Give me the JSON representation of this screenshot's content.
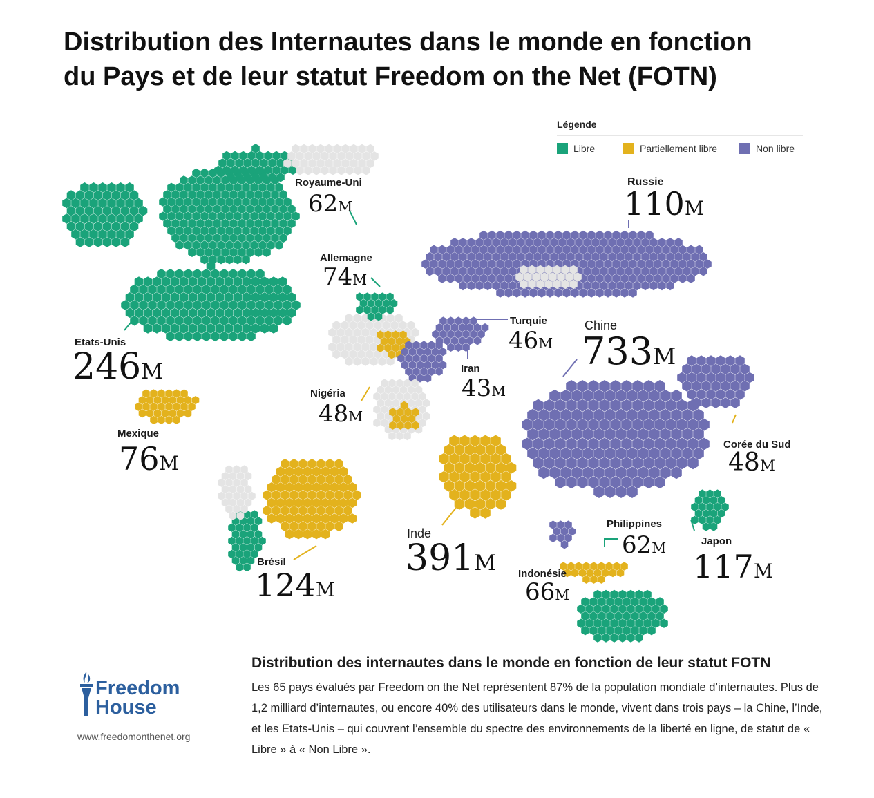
{
  "title_line1": "Distribution des Internautes dans le monde en fonction",
  "title_line2": "du Pays et de leur statut Freedom on the Net (FOTN)",
  "legend": {
    "title": "Légende",
    "items": [
      {
        "label": "Libre",
        "color": "#1aa37a"
      },
      {
        "label": "Partiellement libre",
        "color": "#e3b21d"
      },
      {
        "label": "Non libre",
        "color": "#6f6fb2"
      }
    ]
  },
  "colors": {
    "free": "#1aa37a",
    "partly": "#e3b21d",
    "notfree": "#6f6fb2",
    "other": "#e4e4e4"
  },
  "countries": [
    {
      "name": "Royaume-Uni",
      "value": "62",
      "unit": "M",
      "status": "free"
    },
    {
      "name": "Russie",
      "value": "110",
      "unit": "M",
      "status": "notfree"
    },
    {
      "name": "Allemagne",
      "value": "74",
      "unit": "M",
      "status": "free"
    },
    {
      "name": "Turquie",
      "value": "46",
      "unit": "M",
      "status": "notfree"
    },
    {
      "name": "Chine",
      "value": "733",
      "unit": "M",
      "status": "notfree"
    },
    {
      "name": "Etats-Unis",
      "value": "246",
      "unit": "M",
      "status": "free"
    },
    {
      "name": "Iran",
      "value": "43",
      "unit": "M",
      "status": "notfree"
    },
    {
      "name": "Nigéria",
      "value": "48",
      "unit": "M",
      "status": "partly"
    },
    {
      "name": "Mexique",
      "value": "76",
      "unit": "M",
      "status": "partly"
    },
    {
      "name": "Corée du Sud",
      "value": "48",
      "unit": "M",
      "status": "partly"
    },
    {
      "name": "Philippines",
      "value": "62",
      "unit": "M",
      "status": "free"
    },
    {
      "name": "Inde",
      "value": "391",
      "unit": "M",
      "status": "partly"
    },
    {
      "name": "Japon",
      "value": "117",
      "unit": "M",
      "status": "free"
    },
    {
      "name": "Brésil",
      "value": "124",
      "unit": "M",
      "status": "partly"
    },
    {
      "name": "Indonésie",
      "value": "66",
      "unit": "M",
      "status": "partly"
    }
  ],
  "caption": {
    "title": "Distribution des internautes dans le monde en fonction de leur statut FOTN",
    "body": "Les 65 pays évalués par Freedom on the Net représentent 87% de la population mondiale d’internautes. Plus de 1,2 milliard d’internautes, ou encore 40% des utilisateurs dans le monde, vivent dans trois pays – la Chine, l’Inde, et les Etats-Unis – qui couvrent l’ensemble du spectre des environnements de la liberté en ligne, de statut de « Libre » à « Non Libre »."
  },
  "logo": {
    "line1": "Freedom",
    "line2": "House",
    "url": "www.freedomonthenet.org"
  }
}
